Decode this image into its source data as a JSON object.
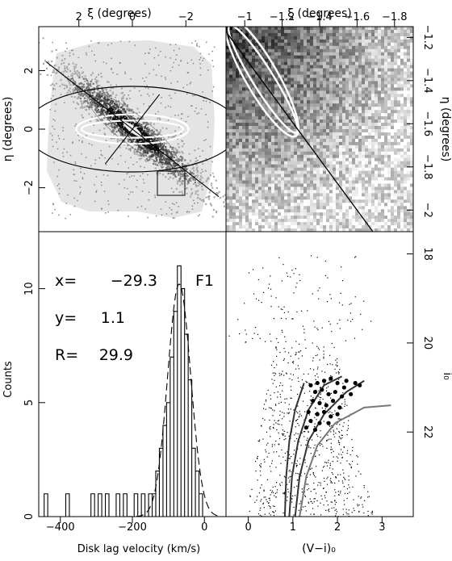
{
  "chart_data": [
    {
      "panel": "top-left",
      "type": "image",
      "xlabel": "ξ (degrees)",
      "ylabel": "η (degrees)",
      "x_ticks": [
        "2",
        "0",
        "−2"
      ],
      "y_ticks": [
        "2",
        "0",
        "−2"
      ],
      "xlim": [
        3.5,
        -3.5
      ],
      "ylim": [
        -3.5,
        3.5
      ],
      "ellipses": [
        {
          "center": [
            0,
            0
          ],
          "semi_major": 4.0,
          "semi_minor": 1.6,
          "position_angle_deg": 38
        },
        {
          "center": [
            0,
            0
          ],
          "semi_major": 2.1,
          "semi_minor": 0.55,
          "position_angle_deg": 38
        },
        {
          "center": [
            0,
            0
          ],
          "semi_major": 1.9,
          "semi_minor": 0.32,
          "position_angle_deg": 38
        }
      ],
      "field_box": {
        "xi": [
          -1.0,
          -1.9
        ],
        "eta": [
          -1.15,
          -2.5
        ]
      }
    },
    {
      "panel": "top-right",
      "type": "image",
      "xlabel": "ξ (degrees)",
      "ylabel": "η (degrees)",
      "x_ticks": [
        "−1",
        "−1.2",
        "−1.4",
        "−1.6",
        "−1.8"
      ],
      "y_ticks": [
        "−1.2",
        "−1.4",
        "−1.6",
        "−1.8",
        "−2"
      ],
      "xlim": [
        -0.9,
        -1.9
      ],
      "ylim": [
        -2.1,
        -1.15
      ]
    },
    {
      "panel": "bottom-left",
      "type": "histogram",
      "xlabel": "Disk lag velocity (km/s)",
      "ylabel": "Counts",
      "x_ticks": [
        "−400",
        "−200",
        "0"
      ],
      "y_ticks": [
        "0",
        "5",
        "10"
      ],
      "xlim": [
        -460,
        60
      ],
      "ylim": [
        0,
        12.5
      ],
      "bin_width": 10,
      "counts": [
        {
          "x": -440,
          "y": 1
        },
        {
          "x": -380,
          "y": 1
        },
        {
          "x": -310,
          "y": 1
        },
        {
          "x": -290,
          "y": 1
        },
        {
          "x": -270,
          "y": 1
        },
        {
          "x": -240,
          "y": 1
        },
        {
          "x": -220,
          "y": 1
        },
        {
          "x": -190,
          "y": 1
        },
        {
          "x": -170,
          "y": 1
        },
        {
          "x": -150,
          "y": 1
        },
        {
          "x": -140,
          "y": 1
        },
        {
          "x": -130,
          "y": 2
        },
        {
          "x": -120,
          "y": 3
        },
        {
          "x": -110,
          "y": 4
        },
        {
          "x": -100,
          "y": 5
        },
        {
          "x": -90,
          "y": 7
        },
        {
          "x": -80,
          "y": 9
        },
        {
          "x": -70,
          "y": 11
        },
        {
          "x": -60,
          "y": 10
        },
        {
          "x": -50,
          "y": 8
        },
        {
          "x": -40,
          "y": 6
        },
        {
          "x": -30,
          "y": 3
        },
        {
          "x": -20,
          "y": 2
        },
        {
          "x": -10,
          "y": 1
        }
      ],
      "gaussian_fit": {
        "mean": -70,
        "sigma": 32,
        "peak": 10.2
      },
      "annotations": {
        "x_label": "x=",
        "x_value": "−29.3",
        "y_label": "y=",
        "y_value": "1.1",
        "r_label": "R=",
        "r_value": "29.9",
        "field": "F1"
      }
    },
    {
      "panel": "bottom-right",
      "type": "scatter",
      "xlabel": "(V−i)₀",
      "ylabel": "i₀",
      "x_ticks": [
        "0",
        "1",
        "2",
        "3"
      ],
      "y_ticks": [
        "18",
        "20",
        "22"
      ],
      "xlim": [
        -0.5,
        3.7
      ],
      "ylim": [
        23.9,
        17.5
      ],
      "series": [
        {
          "role": "field stars",
          "style": "small dots",
          "sample": [
            [
              0.6,
              19.2
            ],
            [
              2.1,
              18.4
            ],
            [
              1.4,
              20.4
            ],
            [
              0.9,
              22.1
            ],
            [
              1.2,
              23.0
            ],
            [
              2.6,
              22.4
            ],
            [
              3.1,
              21.8
            ],
            [
              0.3,
              20.9
            ]
          ]
        },
        {
          "role": "velocity sample",
          "style": "filled circles",
          "points": [
            [
              1.4,
              20.95
            ],
            [
              1.55,
              20.9
            ],
            [
              1.7,
              20.85
            ],
            [
              1.85,
              20.8
            ],
            [
              2.0,
              20.9
            ],
            [
              2.2,
              20.85
            ],
            [
              2.4,
              20.9
            ],
            [
              1.5,
              21.1
            ],
            [
              1.65,
              21.05
            ],
            [
              1.8,
              21.15
            ],
            [
              1.95,
              21.1
            ],
            [
              2.1,
              21.2
            ],
            [
              2.3,
              21.15
            ],
            [
              1.45,
              21.3
            ],
            [
              1.6,
              21.35
            ],
            [
              1.75,
              21.4
            ],
            [
              1.9,
              21.3
            ],
            [
              2.05,
              21.45
            ],
            [
              1.35,
              21.55
            ],
            [
              1.55,
              21.6
            ],
            [
              1.7,
              21.55
            ],
            [
              1.85,
              21.65
            ],
            [
              2.0,
              21.6
            ],
            [
              1.4,
              21.75
            ],
            [
              1.6,
              21.8
            ],
            [
              1.8,
              21.8
            ],
            [
              1.3,
              21.9
            ],
            [
              1.5,
              21.95
            ],
            [
              2.15,
              21.0
            ],
            [
              2.5,
              20.95
            ]
          ]
        },
        {
          "role": "isochrone",
          "points": [
            [
              0.82,
              23.9
            ],
            [
              0.85,
              23.0
            ],
            [
              0.92,
              22.2
            ],
            [
              1.05,
              21.5
            ],
            [
              1.25,
              20.9
            ]
          ]
        },
        {
          "role": "isochrone",
          "points": [
            [
              0.92,
              23.9
            ],
            [
              0.98,
              23.0
            ],
            [
              1.12,
              22.2
            ],
            [
              1.35,
              21.5
            ],
            [
              1.7,
              20.95
            ],
            [
              2.1,
              20.75
            ]
          ]
        },
        {
          "role": "isochrone",
          "points": [
            [
              1.05,
              23.9
            ],
            [
              1.15,
              23.0
            ],
            [
              1.35,
              22.2
            ],
            [
              1.7,
              21.6
            ],
            [
              2.2,
              21.1
            ],
            [
              2.6,
              20.85
            ]
          ]
        },
        {
          "role": "isochrone",
          "points": [
            [
              1.15,
              23.9
            ],
            [
              1.3,
              23.0
            ],
            [
              1.55,
              22.3
            ],
            [
              1.95,
              21.8
            ],
            [
              2.6,
              21.45
            ],
            [
              3.2,
              21.4
            ]
          ]
        }
      ]
    }
  ]
}
